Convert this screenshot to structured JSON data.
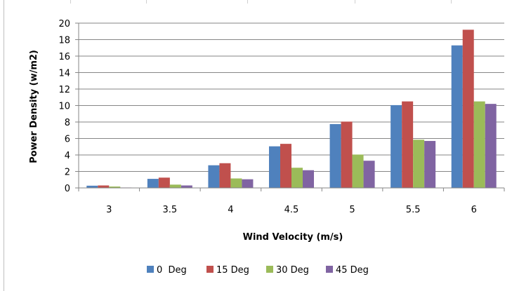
{
  "chart_data": {
    "type": "bar",
    "title": "",
    "xlabel": "Wind Velocity (m/s)",
    "ylabel": "Power Density  (w/m2)",
    "categories": [
      "3",
      "3.5",
      "4",
      "4.5",
      "5",
      "5.5",
      "6"
    ],
    "ylim": [
      0,
      20
    ],
    "yticks": [
      0,
      2,
      4,
      6,
      8,
      10,
      12,
      14,
      16,
      18,
      20
    ],
    "grid": "horizontal",
    "legend_position": "bottom",
    "series": [
      {
        "name": "0  Deg",
        "color": "#4f81bd",
        "values": [
          0.27,
          1.1,
          2.75,
          5.05,
          7.75,
          10.05,
          17.3
        ]
      },
      {
        "name": "15 Deg",
        "color": "#c0504d",
        "values": [
          0.3,
          1.25,
          3.0,
          5.35,
          8.05,
          10.5,
          19.2
        ]
      },
      {
        "name": "30 Deg",
        "color": "#9bbb59",
        "values": [
          0.17,
          0.4,
          1.15,
          2.45,
          4.05,
          5.85,
          10.5
        ]
      },
      {
        "name": "45 Deg",
        "color": "#8064a2",
        "values": [
          0.05,
          0.3,
          1.05,
          2.15,
          3.3,
          5.7,
          10.2
        ]
      }
    ]
  }
}
